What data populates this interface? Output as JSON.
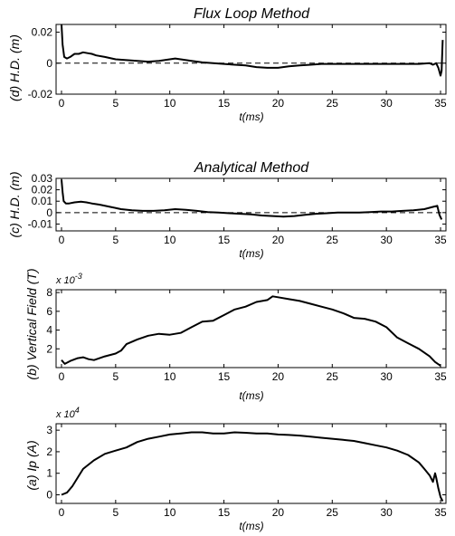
{
  "chart_data": [
    {
      "id": "d",
      "type": "line",
      "title": "Flux Loop Method",
      "xlabel": "t(ms)",
      "ylabel": "(d) H.D. (m)",
      "exponent_label": "",
      "xlim": [
        -0.5,
        35.5
      ],
      "ylim": [
        -0.02,
        0.025
      ],
      "xticks": [
        "0",
        "5",
        "10",
        "15",
        "20",
        "25",
        "30",
        "35"
      ],
      "xtick_values": [
        0,
        5,
        10,
        15,
        20,
        25,
        30,
        35
      ],
      "yticks": [
        "-0.02",
        "0",
        "0.02"
      ],
      "ytick_values": [
        -0.02,
        0,
        0.02
      ],
      "zero_line": "dashed",
      "series": [
        {
          "x": [
            0,
            0.1,
            0.25,
            0.5,
            0.8,
            1.2,
            1.6,
            2.0,
            2.4,
            2.8,
            3.2,
            4,
            5,
            6,
            7,
            8,
            9,
            10,
            10.5,
            11,
            12,
            13,
            14,
            15,
            16,
            17,
            18,
            19,
            20,
            21,
            22,
            23,
            24,
            25,
            26,
            27,
            28,
            29,
            30,
            31,
            32,
            33,
            34,
            34.3,
            34.6,
            34.8,
            35.0,
            35.1,
            35.2
          ],
          "y": [
            0.025,
            0.012,
            0.004,
            0.003,
            0.004,
            0.006,
            0.006,
            0.007,
            0.0065,
            0.006,
            0.005,
            0.004,
            0.0025,
            0.002,
            0.0015,
            0.001,
            0.0015,
            0.0025,
            0.003,
            0.0025,
            0.0015,
            0.0005,
            0,
            -0.0005,
            -0.001,
            -0.0015,
            -0.0025,
            -0.003,
            -0.003,
            -0.002,
            -0.0015,
            -0.001,
            -0.0005,
            -0.0005,
            -0.0005,
            -0.0005,
            -0.0005,
            -0.0005,
            -0.0005,
            -0.0005,
            -0.0005,
            -0.0005,
            0,
            -0.001,
            0.0,
            -0.003,
            -0.008,
            -0.005,
            0.015
          ]
        }
      ]
    },
    {
      "id": "c",
      "type": "line",
      "title": "Analytical Method",
      "xlabel": "t(ms)",
      "ylabel": "(c) H.D. (m)",
      "exponent_label": "",
      "xlim": [
        -0.5,
        35.5
      ],
      "ylim": [
        -0.016,
        0.03
      ],
      "xticks": [
        "0",
        "5",
        "10",
        "15",
        "20",
        "25",
        "30",
        "35"
      ],
      "xtick_values": [
        0,
        5,
        10,
        15,
        20,
        25,
        30,
        35
      ],
      "yticks": [
        "-0.01",
        "0",
        "0.01",
        "0.02",
        "0.03"
      ],
      "ytick_values": [
        -0.01,
        0,
        0.01,
        0.02,
        0.03
      ],
      "zero_line": "dashed",
      "series": [
        {
          "x": [
            0,
            0.1,
            0.2,
            0.4,
            0.7,
            1.2,
            1.8,
            2.3,
            2.8,
            3.5,
            4.5,
            5.5,
            6.5,
            7.5,
            8.5,
            9.5,
            10.5,
            11.5,
            12.5,
            13.5,
            14.5,
            15.5,
            16.5,
            17.5,
            18.5,
            19.5,
            20.5,
            21.5,
            22.5,
            23.5,
            24.5,
            25.5,
            26.5,
            27.5,
            28.5,
            29.5,
            30.5,
            31.5,
            32.5,
            33.5,
            34.3,
            34.7,
            34.9,
            35.1
          ],
          "y": [
            0.029,
            0.018,
            0.01,
            0.008,
            0.008,
            0.009,
            0.0095,
            0.009,
            0.008,
            0.007,
            0.005,
            0.003,
            0.002,
            0.0015,
            0.0015,
            0.002,
            0.003,
            0.0025,
            0.0015,
            0.0005,
            0,
            -0.0005,
            -0.001,
            -0.0015,
            -0.0025,
            -0.003,
            -0.0035,
            -0.003,
            -0.002,
            -0.001,
            -0.0005,
            0,
            0,
            0,
            0.0005,
            0.001,
            0.001,
            0.0015,
            0.002,
            0.003,
            0.005,
            0.006,
            -0.002,
            -0.006
          ]
        }
      ]
    },
    {
      "id": "b",
      "type": "line",
      "title": "",
      "xlabel": "t(ms)",
      "ylabel": "(b) Vertical Field (T)",
      "exponent_label": "x 10",
      "exponent": "-3",
      "xlim": [
        -0.5,
        35.5
      ],
      "ylim": [
        0,
        8.3
      ],
      "xticks": [
        "0",
        "5",
        "10",
        "15",
        "20",
        "25",
        "30",
        "35"
      ],
      "xtick_values": [
        0,
        5,
        10,
        15,
        20,
        25,
        30,
        35
      ],
      "yticks": [
        "2",
        "4",
        "6",
        "8"
      ],
      "ytick_values": [
        2,
        4,
        6,
        8
      ],
      "zero_line": "none",
      "series": [
        {
          "x": [
            0,
            0.3,
            0.8,
            1.5,
            2,
            2.5,
            3,
            4,
            5,
            5.5,
            6,
            7,
            8,
            9,
            10,
            11,
            12,
            13,
            14,
            15,
            16,
            17,
            18,
            19,
            19.5,
            20,
            21,
            22,
            23,
            24,
            25,
            26,
            27,
            28,
            29,
            30,
            31,
            32,
            33,
            34,
            34.5,
            35
          ],
          "y": [
            0.8,
            0.4,
            0.7,
            1.0,
            1.1,
            0.9,
            0.8,
            1.2,
            1.5,
            1.8,
            2.5,
            3.0,
            3.4,
            3.6,
            3.5,
            3.7,
            4.3,
            4.9,
            5.0,
            5.6,
            6.2,
            6.5,
            7.0,
            7.2,
            7.6,
            7.5,
            7.3,
            7.1,
            6.8,
            6.5,
            6.2,
            5.8,
            5.3,
            5.2,
            4.9,
            4.3,
            3.2,
            2.6,
            2.0,
            1.2,
            0.6,
            0.2
          ]
        }
      ]
    },
    {
      "id": "a",
      "type": "line",
      "title": "",
      "xlabel": "t(ms)",
      "ylabel": "(a) Ip (A)",
      "exponent_label": "x 10",
      "exponent": "4",
      "xlim": [
        -0.5,
        35.5
      ],
      "ylim": [
        -0.4,
        3.3
      ],
      "xticks": [
        "0",
        "5",
        "10",
        "15",
        "20",
        "25",
        "30",
        "35"
      ],
      "xtick_values": [
        0,
        5,
        10,
        15,
        20,
        25,
        30,
        35
      ],
      "yticks": [
        "0",
        "1",
        "2",
        "3"
      ],
      "ytick_values": [
        0,
        1,
        2,
        3
      ],
      "zero_line": "none",
      "series": [
        {
          "x": [
            0,
            0.5,
            1,
            1.5,
            2,
            3,
            4,
            5,
            6,
            7,
            8,
            9,
            10,
            11,
            12,
            13,
            14,
            15,
            16,
            17,
            18,
            19,
            20,
            21,
            22,
            23,
            24,
            25,
            26,
            27,
            28,
            29,
            30,
            31,
            32,
            33,
            33.5,
            34,
            34.3,
            34.5,
            34.6,
            34.8,
            35,
            35.2
          ],
          "y": [
            0,
            0.1,
            0.4,
            0.8,
            1.2,
            1.6,
            1.9,
            2.05,
            2.2,
            2.45,
            2.6,
            2.7,
            2.8,
            2.85,
            2.9,
            2.9,
            2.85,
            2.85,
            2.9,
            2.88,
            2.85,
            2.85,
            2.8,
            2.78,
            2.75,
            2.7,
            2.65,
            2.6,
            2.55,
            2.5,
            2.4,
            2.3,
            2.2,
            2.05,
            1.85,
            1.5,
            1.2,
            0.9,
            0.6,
            1.0,
            0.8,
            0.3,
            -0.1,
            -0.3
          ]
        }
      ]
    }
  ]
}
